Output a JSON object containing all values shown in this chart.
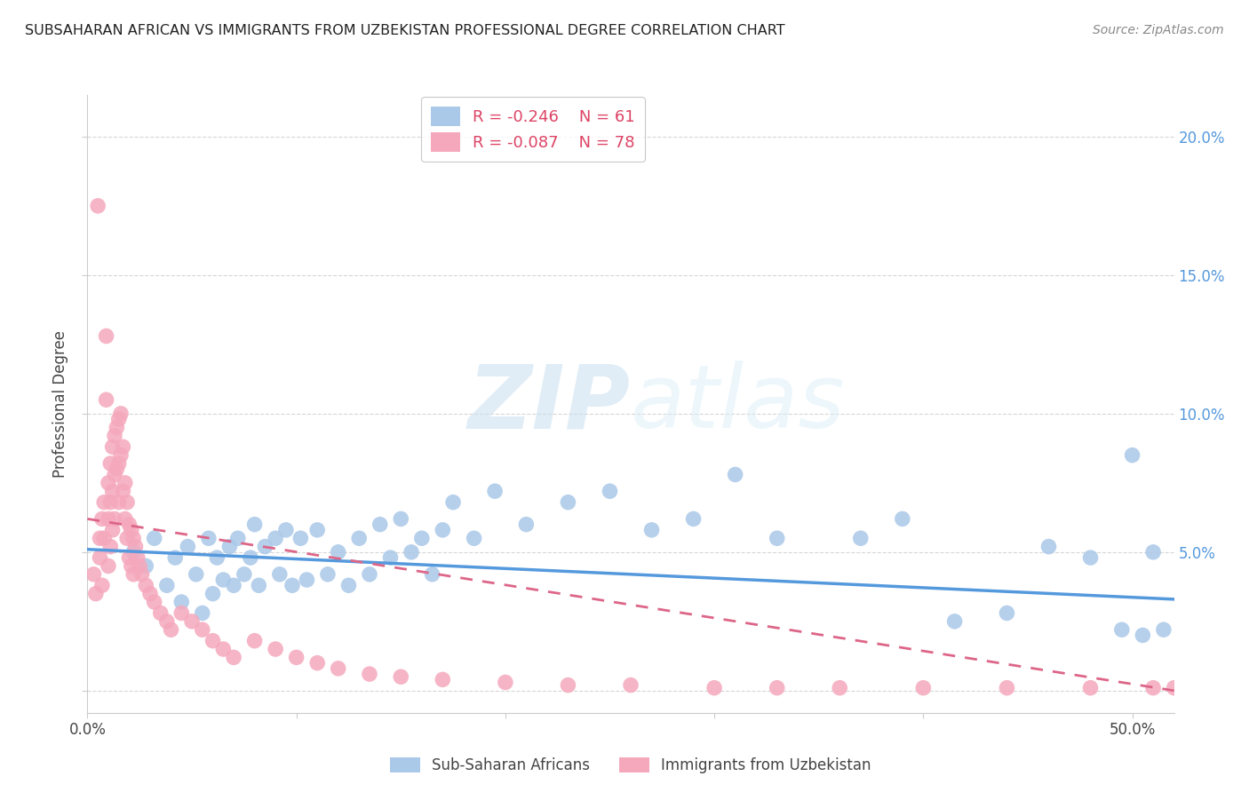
{
  "title": "SUBSAHARAN AFRICAN VS IMMIGRANTS FROM UZBEKISTAN PROFESSIONAL DEGREE CORRELATION CHART",
  "source": "Source: ZipAtlas.com",
  "ylabel": "Professional Degree",
  "xlim": [
    0.0,
    0.52
  ],
  "ylim": [
    -0.008,
    0.215
  ],
  "yticks": [
    0.0,
    0.05,
    0.1,
    0.15,
    0.2
  ],
  "ytick_labels_right": [
    "",
    "5.0%",
    "10.0%",
    "15.0%",
    "20.0%"
  ],
  "legend_blue_r": "-0.246",
  "legend_blue_n": "61",
  "legend_pink_r": "-0.087",
  "legend_pink_n": "78",
  "blue_color": "#aac8e8",
  "pink_color": "#f5a8bc",
  "blue_line_color": "#5599dd",
  "pink_line_color": "#dd6688",
  "watermark_color": "#ddeeff",
  "blue_scatter_x": [
    0.022,
    0.028,
    0.032,
    0.038,
    0.042,
    0.045,
    0.048,
    0.052,
    0.055,
    0.058,
    0.06,
    0.062,
    0.065,
    0.068,
    0.07,
    0.072,
    0.075,
    0.078,
    0.08,
    0.082,
    0.085,
    0.09,
    0.092,
    0.095,
    0.098,
    0.102,
    0.105,
    0.11,
    0.115,
    0.12,
    0.125,
    0.13,
    0.135,
    0.14,
    0.145,
    0.15,
    0.155,
    0.16,
    0.165,
    0.17,
    0.175,
    0.185,
    0.195,
    0.21,
    0.23,
    0.25,
    0.27,
    0.29,
    0.31,
    0.33,
    0.37,
    0.39,
    0.415,
    0.44,
    0.46,
    0.48,
    0.495,
    0.5,
    0.505,
    0.51,
    0.515
  ],
  "blue_scatter_y": [
    0.05,
    0.045,
    0.055,
    0.038,
    0.048,
    0.032,
    0.052,
    0.042,
    0.028,
    0.055,
    0.035,
    0.048,
    0.04,
    0.052,
    0.038,
    0.055,
    0.042,
    0.048,
    0.06,
    0.038,
    0.052,
    0.055,
    0.042,
    0.058,
    0.038,
    0.055,
    0.04,
    0.058,
    0.042,
    0.05,
    0.038,
    0.055,
    0.042,
    0.06,
    0.048,
    0.062,
    0.05,
    0.055,
    0.042,
    0.058,
    0.068,
    0.055,
    0.072,
    0.06,
    0.068,
    0.072,
    0.058,
    0.062,
    0.078,
    0.055,
    0.055,
    0.062,
    0.025,
    0.028,
    0.052,
    0.048,
    0.022,
    0.085,
    0.02,
    0.05,
    0.022
  ],
  "pink_scatter_x": [
    0.003,
    0.004,
    0.005,
    0.006,
    0.006,
    0.007,
    0.007,
    0.008,
    0.008,
    0.009,
    0.009,
    0.01,
    0.01,
    0.01,
    0.011,
    0.011,
    0.011,
    0.012,
    0.012,
    0.012,
    0.013,
    0.013,
    0.013,
    0.014,
    0.014,
    0.015,
    0.015,
    0.015,
    0.016,
    0.016,
    0.017,
    0.017,
    0.018,
    0.018,
    0.019,
    0.019,
    0.02,
    0.02,
    0.021,
    0.021,
    0.022,
    0.022,
    0.023,
    0.024,
    0.025,
    0.026,
    0.028,
    0.03,
    0.032,
    0.035,
    0.038,
    0.04,
    0.045,
    0.05,
    0.055,
    0.06,
    0.065,
    0.07,
    0.08,
    0.09,
    0.1,
    0.11,
    0.12,
    0.135,
    0.15,
    0.17,
    0.2,
    0.23,
    0.26,
    0.3,
    0.33,
    0.36,
    0.4,
    0.44,
    0.48,
    0.51,
    0.52,
    0.53
  ],
  "pink_scatter_y": [
    0.042,
    0.035,
    0.175,
    0.055,
    0.048,
    0.062,
    0.038,
    0.068,
    0.055,
    0.128,
    0.105,
    0.075,
    0.062,
    0.045,
    0.082,
    0.068,
    0.052,
    0.088,
    0.072,
    0.058,
    0.092,
    0.078,
    0.062,
    0.095,
    0.08,
    0.098,
    0.082,
    0.068,
    0.1,
    0.085,
    0.088,
    0.072,
    0.075,
    0.062,
    0.068,
    0.055,
    0.06,
    0.048,
    0.058,
    0.045,
    0.055,
    0.042,
    0.052,
    0.048,
    0.045,
    0.042,
    0.038,
    0.035,
    0.032,
    0.028,
    0.025,
    0.022,
    0.028,
    0.025,
    0.022,
    0.018,
    0.015,
    0.012,
    0.018,
    0.015,
    0.012,
    0.01,
    0.008,
    0.006,
    0.005,
    0.004,
    0.003,
    0.002,
    0.002,
    0.001,
    0.001,
    0.001,
    0.001,
    0.001,
    0.001,
    0.001,
    0.001,
    0.001
  ]
}
